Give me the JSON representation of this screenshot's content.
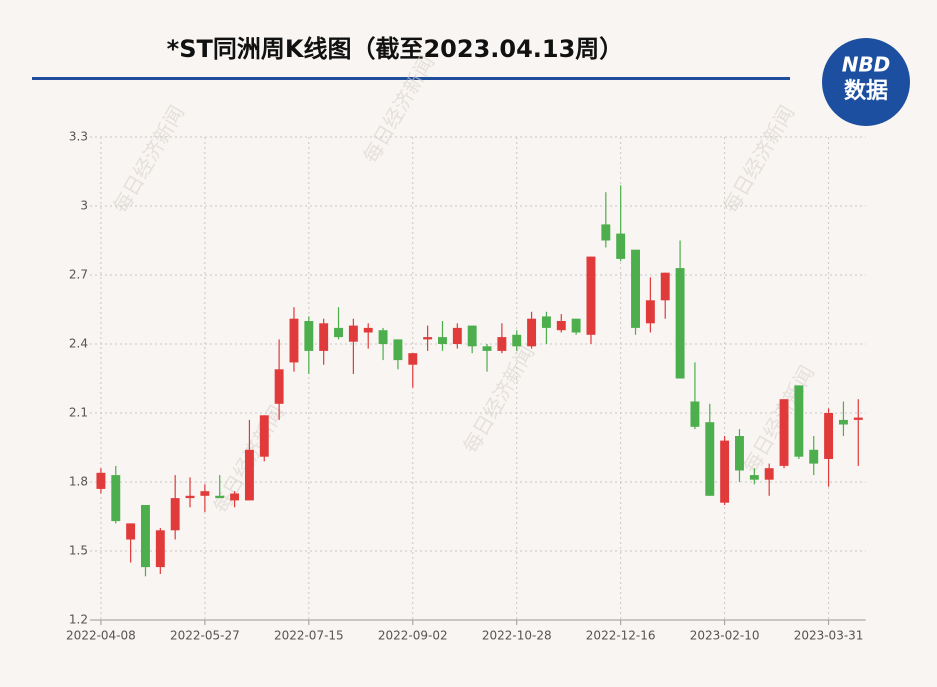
{
  "chart_data": {
    "type": "candlestick",
    "title": "*ST同洲周K线图（截至2023.04.13周）",
    "watermark": "每日经济新闻",
    "logo": [
      "NBD",
      "数据"
    ],
    "categories": [
      "2022-04-08",
      null,
      null,
      null,
      null,
      null,
      null,
      "2022-05-27",
      null,
      null,
      null,
      null,
      null,
      null,
      "2022-07-15",
      null,
      null,
      null,
      null,
      null,
      null,
      "2022-09-02",
      null,
      null,
      null,
      null,
      null,
      null,
      "2022-10-28",
      null,
      null,
      null,
      null,
      null,
      null,
      "2022-12-16",
      null,
      null,
      null,
      null,
      null,
      null,
      "2023-02-10",
      null,
      null,
      null,
      null,
      null,
      null,
      "2023-03-31",
      null,
      null
    ],
    "open": [
      1.77,
      1.83,
      1.55,
      1.7,
      1.43,
      1.59,
      1.73,
      1.74,
      1.74,
      1.72,
      1.72,
      1.91,
      2.14,
      2.32,
      2.5,
      2.37,
      2.47,
      2.41,
      2.45,
      2.46,
      2.42,
      2.31,
      2.42,
      2.43,
      2.4,
      2.48,
      2.39,
      2.37,
      2.44,
      2.39,
      2.52,
      2.46,
      2.51,
      2.44,
      2.92,
      2.88,
      2.81,
      2.49,
      2.59,
      2.73,
      2.15,
      2.06,
      1.71,
      2.0,
      1.83,
      1.81,
      1.87,
      2.22,
      1.94,
      1.9,
      2.07,
      2.07
    ],
    "close": [
      1.84,
      1.63,
      1.62,
      1.43,
      1.59,
      1.73,
      1.74,
      1.76,
      1.73,
      1.75,
      1.94,
      2.09,
      2.29,
      2.51,
      2.37,
      2.49,
      2.43,
      2.48,
      2.47,
      2.4,
      2.33,
      2.36,
      2.43,
      2.4,
      2.47,
      2.39,
      2.37,
      2.43,
      2.39,
      2.51,
      2.47,
      2.5,
      2.45,
      2.78,
      2.85,
      2.77,
      2.47,
      2.59,
      2.71,
      2.25,
      2.04,
      1.74,
      1.98,
      1.85,
      1.81,
      1.86,
      2.16,
      1.91,
      1.88,
      2.1,
      2.05,
      2.08
    ],
    "high": [
      1.86,
      1.87,
      1.62,
      1.7,
      1.6,
      1.83,
      1.82,
      1.79,
      1.83,
      1.76,
      2.07,
      2.09,
      2.42,
      2.56,
      2.52,
      2.51,
      2.56,
      2.51,
      2.49,
      2.47,
      2.42,
      2.36,
      2.48,
      2.5,
      2.49,
      2.48,
      2.4,
      2.49,
      2.46,
      2.54,
      2.54,
      2.53,
      2.51,
      2.78,
      3.06,
      3.09,
      2.81,
      2.69,
      2.71,
      2.85,
      2.32,
      2.14,
      2.0,
      2.03,
      1.86,
      1.88,
      2.16,
      2.22,
      2.0,
      2.12,
      2.15,
      2.16
    ],
    "low": [
      1.75,
      1.62,
      1.45,
      1.39,
      1.4,
      1.55,
      1.69,
      1.67,
      1.73,
      1.69,
      1.72,
      1.89,
      2.07,
      2.28,
      2.27,
      2.31,
      2.42,
      2.27,
      2.38,
      2.33,
      2.29,
      2.21,
      2.37,
      2.37,
      2.38,
      2.36,
      2.28,
      2.36,
      2.37,
      2.38,
      2.4,
      2.45,
      2.44,
      2.4,
      2.82,
      2.76,
      2.44,
      2.45,
      2.51,
      2.25,
      2.03,
      1.74,
      1.7,
      1.8,
      1.79,
      1.74,
      1.86,
      1.9,
      1.83,
      1.78,
      2.0,
      1.87
    ],
    "up_color": "#e03a3a",
    "down_color": "#4cae4c",
    "ylim": [
      1.2,
      3.3
    ],
    "yticks": [
      1.2,
      1.5,
      1.8,
      2.1,
      2.4,
      2.7,
      3,
      3.3
    ],
    "grid": true
  }
}
